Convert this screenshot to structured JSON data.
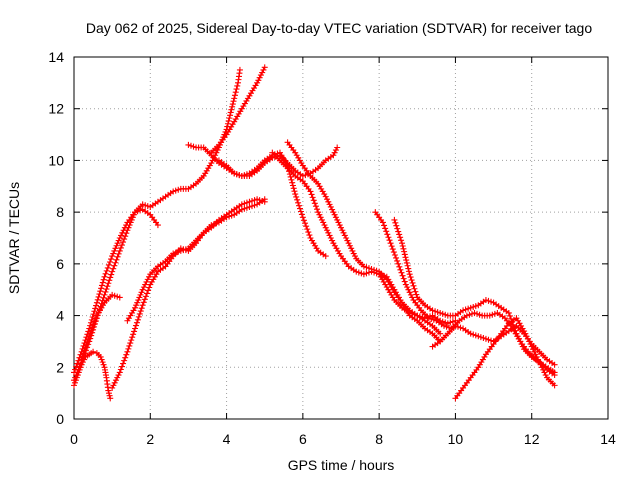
{
  "chart_data": {
    "type": "scatter",
    "title": "Day 062 of 2025, Sidereal Day-to-day VTEC variation (SDTVAR) for receiver tago",
    "xlabel": "GPS time / hours",
    "ylabel": "SDTVAR / TECUs",
    "xlim": [
      0,
      14
    ],
    "ylim": [
      0,
      14
    ],
    "xticks": [
      "0",
      "2",
      "4",
      "6",
      "8",
      "10",
      "12",
      "14"
    ],
    "yticks": [
      "0",
      "2",
      "4",
      "6",
      "8",
      "10",
      "12",
      "14"
    ],
    "grid": true,
    "marker": "plus",
    "color": "#ff0000",
    "series": [
      {
        "points": [
          [
            0.0,
            1.3
          ],
          [
            0.1,
            1.7
          ],
          [
            0.2,
            2.1
          ],
          [
            0.3,
            2.4
          ],
          [
            0.4,
            2.5
          ],
          [
            0.5,
            2.6
          ],
          [
            0.6,
            2.55
          ],
          [
            0.7,
            2.4
          ],
          [
            0.8,
            2.0
          ],
          [
            0.85,
            1.6
          ],
          [
            0.9,
            1.1
          ],
          [
            0.95,
            0.8
          ]
        ]
      },
      {
        "points": [
          [
            0.0,
            1.8
          ],
          [
            0.2,
            2.6
          ],
          [
            0.4,
            3.5
          ],
          [
            0.6,
            4.5
          ],
          [
            0.8,
            5.5
          ],
          [
            1.0,
            6.3
          ],
          [
            1.2,
            7.0
          ],
          [
            1.4,
            7.6
          ],
          [
            1.6,
            8.0
          ],
          [
            1.8,
            8.1
          ],
          [
            2.0,
            7.9
          ],
          [
            2.2,
            7.5
          ]
        ]
      },
      {
        "points": [
          [
            0.0,
            1.5
          ],
          [
            0.2,
            2.2
          ],
          [
            0.4,
            3.0
          ],
          [
            0.6,
            3.9
          ],
          [
            0.8,
            4.8
          ],
          [
            1.0,
            5.7
          ],
          [
            1.2,
            6.5
          ],
          [
            1.4,
            7.3
          ],
          [
            1.6,
            8.0
          ],
          [
            1.8,
            8.3
          ],
          [
            2.0,
            8.2
          ],
          [
            2.2,
            8.4
          ],
          [
            2.4,
            8.6
          ],
          [
            2.6,
            8.8
          ],
          [
            2.8,
            8.9
          ],
          [
            3.0,
            8.9
          ],
          [
            3.2,
            9.1
          ],
          [
            3.4,
            9.4
          ],
          [
            3.6,
            9.9
          ],
          [
            3.8,
            10.5
          ],
          [
            4.0,
            11.2
          ],
          [
            4.2,
            12.4
          ],
          [
            4.3,
            13.0
          ],
          [
            4.35,
            13.5
          ]
        ]
      },
      {
        "points": [
          [
            0.2,
            2.3
          ],
          [
            0.4,
            3.2
          ],
          [
            0.6,
            4.0
          ],
          [
            0.8,
            4.5
          ],
          [
            1.0,
            4.8
          ],
          [
            1.2,
            4.7
          ]
        ]
      },
      {
        "points": [
          [
            1.0,
            1.2
          ],
          [
            1.2,
            1.8
          ],
          [
            1.4,
            2.6
          ],
          [
            1.6,
            3.5
          ],
          [
            1.8,
            4.4
          ],
          [
            2.0,
            5.2
          ],
          [
            2.2,
            5.7
          ],
          [
            2.4,
            5.9
          ],
          [
            2.6,
            6.3
          ],
          [
            2.8,
            6.6
          ],
          [
            3.0,
            6.5
          ],
          [
            3.2,
            6.8
          ],
          [
            3.4,
            7.2
          ],
          [
            3.6,
            7.5
          ],
          [
            3.8,
            7.6
          ],
          [
            4.0,
            7.8
          ],
          [
            4.2,
            7.9
          ],
          [
            4.4,
            8.1
          ],
          [
            4.6,
            8.2
          ],
          [
            4.8,
            8.3
          ],
          [
            5.0,
            8.5
          ]
        ]
      },
      {
        "points": [
          [
            1.4,
            3.8
          ],
          [
            1.6,
            4.3
          ],
          [
            1.8,
            5.0
          ],
          [
            2.0,
            5.6
          ],
          [
            2.2,
            5.9
          ],
          [
            2.4,
            6.1
          ],
          [
            2.6,
            6.4
          ],
          [
            2.8,
            6.5
          ],
          [
            3.0,
            6.6
          ],
          [
            3.2,
            6.9
          ],
          [
            3.4,
            7.2
          ],
          [
            3.6,
            7.4
          ],
          [
            3.8,
            7.7
          ],
          [
            4.0,
            7.9
          ],
          [
            4.2,
            8.1
          ],
          [
            4.4,
            8.3
          ],
          [
            4.6,
            8.4
          ],
          [
            4.8,
            8.5
          ],
          [
            5.0,
            8.4
          ]
        ]
      },
      {
        "points": [
          [
            3.0,
            10.6
          ],
          [
            3.2,
            10.5
          ],
          [
            3.4,
            10.5
          ],
          [
            3.6,
            10.2
          ],
          [
            3.8,
            9.9
          ],
          [
            4.0,
            9.7
          ],
          [
            4.2,
            9.5
          ],
          [
            4.4,
            9.4
          ],
          [
            4.6,
            9.4
          ],
          [
            4.8,
            9.6
          ],
          [
            5.0,
            9.9
          ],
          [
            5.2,
            10.1
          ],
          [
            5.4,
            10.2
          ],
          [
            5.6,
            9.9
          ],
          [
            5.8,
            9.6
          ],
          [
            6.0,
            9.4
          ],
          [
            6.2,
            9.5
          ],
          [
            6.4,
            9.7
          ],
          [
            6.6,
            10.0
          ],
          [
            6.8,
            10.2
          ],
          [
            6.9,
            10.5
          ]
        ]
      },
      {
        "points": [
          [
            3.6,
            10.3
          ],
          [
            3.8,
            10.6
          ],
          [
            4.0,
            11.0
          ],
          [
            4.2,
            11.5
          ],
          [
            4.4,
            12.0
          ],
          [
            4.6,
            12.5
          ],
          [
            4.8,
            13.0
          ],
          [
            5.0,
            13.6
          ]
        ]
      },
      {
        "points": [
          [
            3.8,
            10.0
          ],
          [
            4.0,
            9.8
          ],
          [
            4.2,
            9.5
          ],
          [
            4.4,
            9.4
          ],
          [
            4.6,
            9.5
          ],
          [
            4.8,
            9.7
          ],
          [
            5.0,
            10.0
          ],
          [
            5.2,
            10.2
          ],
          [
            5.4,
            10.3
          ],
          [
            5.6,
            9.8
          ],
          [
            5.8,
            8.7
          ],
          [
            6.0,
            7.8
          ],
          [
            6.2,
            7.0
          ],
          [
            6.4,
            6.5
          ],
          [
            6.6,
            6.3
          ]
        ]
      },
      {
        "points": [
          [
            5.2,
            10.3
          ],
          [
            5.4,
            10.0
          ],
          [
            5.6,
            9.7
          ],
          [
            5.8,
            9.4
          ],
          [
            6.0,
            9.2
          ],
          [
            6.2,
            8.8
          ],
          [
            6.4,
            8.0
          ],
          [
            6.6,
            7.4
          ],
          [
            6.8,
            6.8
          ],
          [
            7.0,
            6.3
          ],
          [
            7.2,
            5.9
          ],
          [
            7.4,
            5.7
          ],
          [
            7.6,
            5.6
          ],
          [
            7.8,
            5.7
          ],
          [
            8.0,
            5.6
          ],
          [
            8.2,
            5.5
          ],
          [
            8.4,
            5.0
          ],
          [
            8.6,
            4.5
          ],
          [
            8.8,
            4.0
          ],
          [
            9.0,
            3.8
          ],
          [
            9.2,
            3.5
          ],
          [
            9.4,
            3.3
          ],
          [
            9.6,
            3.0
          ]
        ]
      },
      {
        "points": [
          [
            5.6,
            10.7
          ],
          [
            5.8,
            10.3
          ],
          [
            6.0,
            9.8
          ],
          [
            6.2,
            9.4
          ],
          [
            6.4,
            9.1
          ],
          [
            6.6,
            8.6
          ],
          [
            6.8,
            8.0
          ],
          [
            7.0,
            7.4
          ],
          [
            7.2,
            6.8
          ],
          [
            7.4,
            6.2
          ],
          [
            7.6,
            5.9
          ],
          [
            7.8,
            5.8
          ],
          [
            8.0,
            5.7
          ],
          [
            8.2,
            5.4
          ],
          [
            8.4,
            4.9
          ],
          [
            8.6,
            4.5
          ],
          [
            8.8,
            4.2
          ],
          [
            9.0,
            4.0
          ],
          [
            9.2,
            3.8
          ],
          [
            9.4,
            3.6
          ],
          [
            9.6,
            3.3
          ]
        ]
      },
      {
        "points": [
          [
            7.9,
            8.0
          ],
          [
            8.1,
            7.6
          ],
          [
            8.3,
            6.8
          ],
          [
            8.5,
            6.0
          ],
          [
            8.7,
            5.2
          ],
          [
            8.9,
            4.6
          ],
          [
            9.1,
            4.2
          ],
          [
            9.3,
            3.9
          ],
          [
            9.5,
            3.8
          ],
          [
            9.7,
            3.6
          ],
          [
            9.9,
            3.5
          ],
          [
            10.1,
            3.8
          ],
          [
            10.3,
            4.0
          ],
          [
            10.5,
            4.1
          ],
          [
            10.7,
            4.0
          ],
          [
            10.9,
            4.0
          ],
          [
            11.1,
            4.1
          ],
          [
            11.3,
            3.9
          ],
          [
            11.5,
            3.5
          ],
          [
            11.7,
            3.0
          ],
          [
            11.9,
            2.6
          ],
          [
            12.1,
            2.3
          ],
          [
            12.3,
            2.1
          ],
          [
            12.5,
            1.9
          ],
          [
            12.6,
            1.8
          ]
        ]
      },
      {
        "points": [
          [
            8.4,
            7.7
          ],
          [
            8.6,
            6.8
          ],
          [
            8.8,
            5.6
          ],
          [
            9.0,
            4.7
          ],
          [
            9.2,
            4.4
          ],
          [
            9.4,
            4.2
          ],
          [
            9.6,
            4.1
          ],
          [
            9.8,
            4.0
          ],
          [
            10.0,
            4.0
          ],
          [
            10.2,
            4.2
          ],
          [
            10.4,
            4.3
          ],
          [
            10.6,
            4.4
          ],
          [
            10.8,
            4.6
          ],
          [
            11.0,
            4.5
          ],
          [
            11.2,
            4.3
          ],
          [
            11.4,
            4.1
          ],
          [
            11.6,
            3.3
          ],
          [
            11.8,
            2.7
          ],
          [
            12.0,
            2.4
          ],
          [
            12.2,
            2.2
          ],
          [
            12.4,
            1.9
          ],
          [
            12.6,
            1.7
          ]
        ]
      },
      {
        "points": [
          [
            8.0,
            5.6
          ],
          [
            8.2,
            5.1
          ],
          [
            8.4,
            4.6
          ],
          [
            8.6,
            4.3
          ],
          [
            8.8,
            4.1
          ],
          [
            9.0,
            4.0
          ],
          [
            9.2,
            3.9
          ],
          [
            9.4,
            4.0
          ],
          [
            9.6,
            3.8
          ],
          [
            9.8,
            3.7
          ],
          [
            10.0,
            3.8
          ]
        ]
      },
      {
        "points": [
          [
            9.4,
            2.8
          ],
          [
            9.6,
            3.0
          ],
          [
            9.8,
            3.3
          ],
          [
            10.0,
            3.6
          ],
          [
            10.2,
            3.5
          ],
          [
            10.4,
            3.3
          ],
          [
            10.6,
            3.2
          ],
          [
            10.8,
            3.1
          ],
          [
            11.0,
            3.0
          ],
          [
            11.2,
            3.2
          ],
          [
            11.4,
            3.4
          ],
          [
            11.6,
            3.6
          ],
          [
            11.8,
            3.3
          ],
          [
            12.0,
            2.9
          ],
          [
            12.2,
            2.6
          ],
          [
            12.4,
            2.3
          ],
          [
            12.6,
            2.1
          ]
        ]
      },
      {
        "points": [
          [
            10.0,
            0.8
          ],
          [
            10.2,
            1.2
          ],
          [
            10.4,
            1.6
          ],
          [
            10.6,
            2.0
          ],
          [
            10.8,
            2.5
          ],
          [
            11.0,
            2.9
          ],
          [
            11.2,
            3.3
          ],
          [
            11.4,
            3.7
          ],
          [
            11.6,
            3.9
          ],
          [
            11.8,
            3.4
          ],
          [
            12.0,
            2.8
          ],
          [
            12.2,
            2.2
          ],
          [
            12.4,
            1.6
          ],
          [
            12.6,
            1.3
          ]
        ]
      }
    ]
  }
}
